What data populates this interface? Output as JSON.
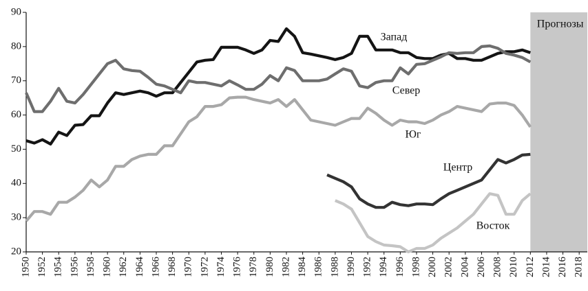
{
  "chart_data": {
    "type": "line",
    "x": [
      1950,
      1951,
      1952,
      1953,
      1954,
      1955,
      1956,
      1957,
      1958,
      1959,
      1960,
      1961,
      1962,
      1963,
      1964,
      1965,
      1966,
      1967,
      1968,
      1969,
      1970,
      1971,
      1972,
      1973,
      1974,
      1975,
      1976,
      1977,
      1978,
      1979,
      1980,
      1981,
      1982,
      1983,
      1984,
      1985,
      1986,
      1987,
      1988,
      1989,
      1990,
      1991,
      1992,
      1993,
      1994,
      1995,
      1996,
      1997,
      1998,
      1999,
      2000,
      2001,
      2002,
      2003,
      2004,
      2005,
      2006,
      2007,
      2008,
      2009,
      2010,
      2011,
      2012
    ],
    "series": [
      {
        "name": "Запад",
        "color": "#141414",
        "values": [
          52.5,
          51.8,
          52.8,
          51.5,
          55,
          54,
          57,
          57.2,
          59.8,
          59.8,
          63.5,
          66.5,
          66,
          66.5,
          67,
          66.5,
          65.5,
          66.5,
          66.5,
          69.5,
          72.5,
          75.5,
          76,
          76.2,
          79.8,
          79.8,
          79.8,
          79,
          78,
          79,
          81.8,
          81.5,
          85.2,
          83,
          78.2,
          77.8,
          77.3,
          76.8,
          76.2,
          76.8,
          78,
          83,
          83,
          79,
          79,
          79,
          78.2,
          78.2,
          76.8,
          76.5,
          76.5,
          77.5,
          78,
          76.5,
          76.5,
          76,
          76,
          77,
          78,
          78.5,
          78.5,
          79,
          78.2
        ]
      },
      {
        "name": "Север",
        "color": "#6e6e6e",
        "values": [
          66.5,
          61,
          61,
          64,
          67.8,
          64,
          63.5,
          66,
          69,
          72,
          75,
          76,
          73.5,
          73,
          72.8,
          71,
          69,
          68.5,
          67.5,
          66.5,
          70,
          69.5,
          69.5,
          69,
          68.5,
          70,
          68.8,
          67.5,
          67.5,
          69,
          71.5,
          70,
          73.8,
          73,
          70,
          70,
          70,
          70.5,
          72,
          73.5,
          72.8,
          68.5,
          68,
          69.5,
          70,
          70,
          73.8,
          72,
          74.8,
          75,
          76,
          77,
          78.2,
          78,
          78.2,
          78.2,
          80,
          80.2,
          79.5,
          78,
          77.5,
          76.8,
          75.5
        ]
      },
      {
        "name": "Юг",
        "color": "#a8a8a8",
        "values": [
          29,
          31.8,
          31.8,
          31,
          34.5,
          34.5,
          36,
          38,
          41,
          39,
          41,
          45,
          45,
          47,
          48,
          48.5,
          48.5,
          51,
          51,
          54.5,
          58,
          59.5,
          62.5,
          62.5,
          63,
          65,
          65.2,
          65.2,
          64.5,
          64,
          63.5,
          64.5,
          62.5,
          64.5,
          61.5,
          58.5,
          58,
          57.5,
          57,
          58,
          59,
          59,
          62,
          60.5,
          58.5,
          57,
          58.5,
          58,
          58,
          57.5,
          58.5,
          60,
          61,
          62.5,
          62,
          61.5,
          61,
          63.2,
          63.5,
          63.5,
          62.8,
          60,
          56.5
        ]
      },
      {
        "name": "Центр",
        "color": "#333333",
        "values": [
          null,
          null,
          null,
          null,
          null,
          null,
          null,
          null,
          null,
          null,
          null,
          null,
          null,
          null,
          null,
          null,
          null,
          null,
          null,
          null,
          null,
          null,
          null,
          null,
          null,
          null,
          null,
          null,
          null,
          null,
          null,
          null,
          null,
          null,
          null,
          null,
          null,
          42.5,
          41.5,
          40.5,
          39,
          35.5,
          34,
          33,
          33,
          34.5,
          33.8,
          33.5,
          34,
          34,
          33.8,
          35.5,
          37,
          38,
          39,
          40,
          41,
          44,
          47,
          46,
          47,
          48.3,
          48.5
        ]
      },
      {
        "name": "Восток",
        "color": "#c4c4c4",
        "values": [
          null,
          null,
          null,
          null,
          null,
          null,
          null,
          null,
          null,
          null,
          null,
          null,
          null,
          null,
          null,
          null,
          null,
          null,
          null,
          null,
          null,
          null,
          null,
          null,
          null,
          null,
          null,
          null,
          null,
          null,
          null,
          null,
          null,
          null,
          null,
          null,
          null,
          null,
          35,
          34,
          32.5,
          28.5,
          24.5,
          23,
          22,
          21.8,
          21.5,
          20,
          21,
          21,
          22,
          24,
          25.5,
          27,
          29,
          31,
          34,
          37,
          36.5,
          31,
          31,
          35,
          37
        ]
      }
    ],
    "forecast": {
      "label": "Прогнозы",
      "from": 2012
    },
    "xlim": [
      1950,
      2019
    ],
    "xticks": [
      1950,
      1952,
      1954,
      1956,
      1958,
      1960,
      1962,
      1964,
      1966,
      1968,
      1970,
      1972,
      1974,
      1976,
      1978,
      1980,
      1982,
      1984,
      1986,
      1988,
      1990,
      1992,
      1994,
      1996,
      1998,
      2000,
      2002,
      2004,
      2006,
      2008,
      2010,
      2012,
      2014,
      2016,
      2018
    ],
    "ylim": [
      20,
      90
    ],
    "yticks": [
      20,
      30,
      40,
      50,
      60,
      70,
      80,
      90
    ]
  }
}
